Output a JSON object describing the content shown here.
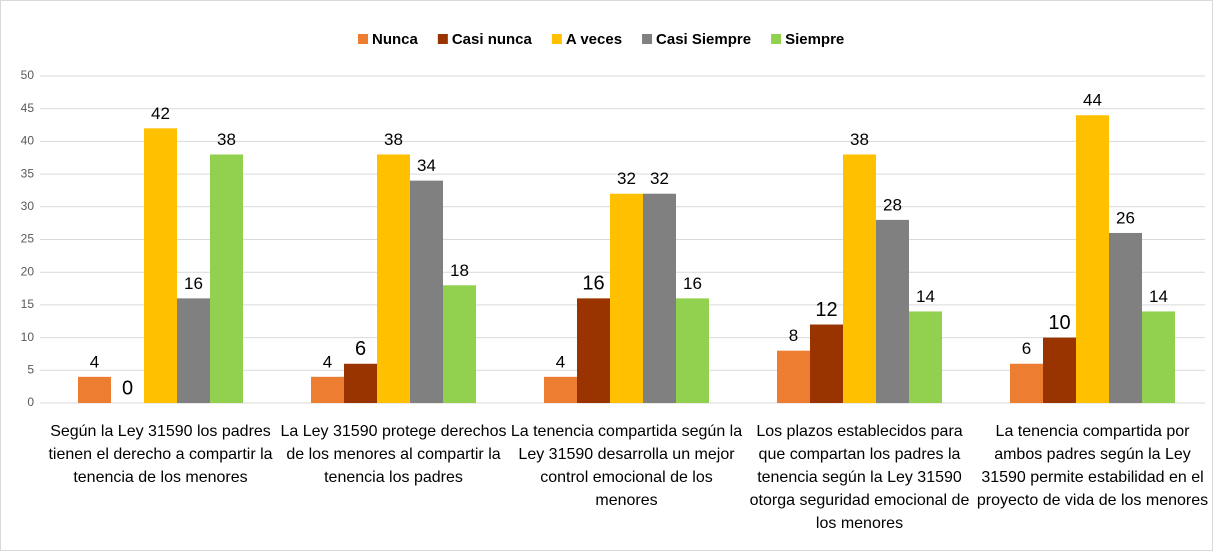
{
  "chart_data": {
    "type": "bar",
    "categories": [
      "Según la Ley 31590 los padres tienen el derecho a compartir la tenencia de los menores",
      "La Ley 31590 protege derechos de los menores al compartir la tenencia los padres",
      "La tenencia compartida según la Ley 31590 desarrolla un mejor control emocional de los menores",
      "Los plazos establecidos para que compartan los padres la tenencia según la Ley 31590 otorga seguridad emocional de los menores",
      "La tenencia compartida por ambos padres según la Ley 31590 permite estabilidad en el proyecto de vida de los menores"
    ],
    "series": [
      {
        "name": "Nunca",
        "color": "#ed7d31",
        "values": [
          4,
          4,
          4,
          8,
          6
        ]
      },
      {
        "name": "Casi nunca",
        "color": "#993300",
        "values": [
          0,
          6,
          16,
          12,
          10
        ]
      },
      {
        "name": "A veces",
        "color": "#ffc000",
        "values": [
          42,
          38,
          32,
          38,
          44
        ]
      },
      {
        "name": "Casi Siempre",
        "color": "#808080",
        "values": [
          16,
          34,
          32,
          28,
          26
        ]
      },
      {
        "name": "Siempre",
        "color": "#92d050",
        "values": [
          38,
          18,
          16,
          14,
          14
        ]
      }
    ],
    "ylim": [
      0,
      50
    ],
    "yticks": [
      0,
      5,
      10,
      15,
      20,
      25,
      30,
      35,
      40,
      45,
      50
    ],
    "grid": true,
    "legend": "top"
  }
}
